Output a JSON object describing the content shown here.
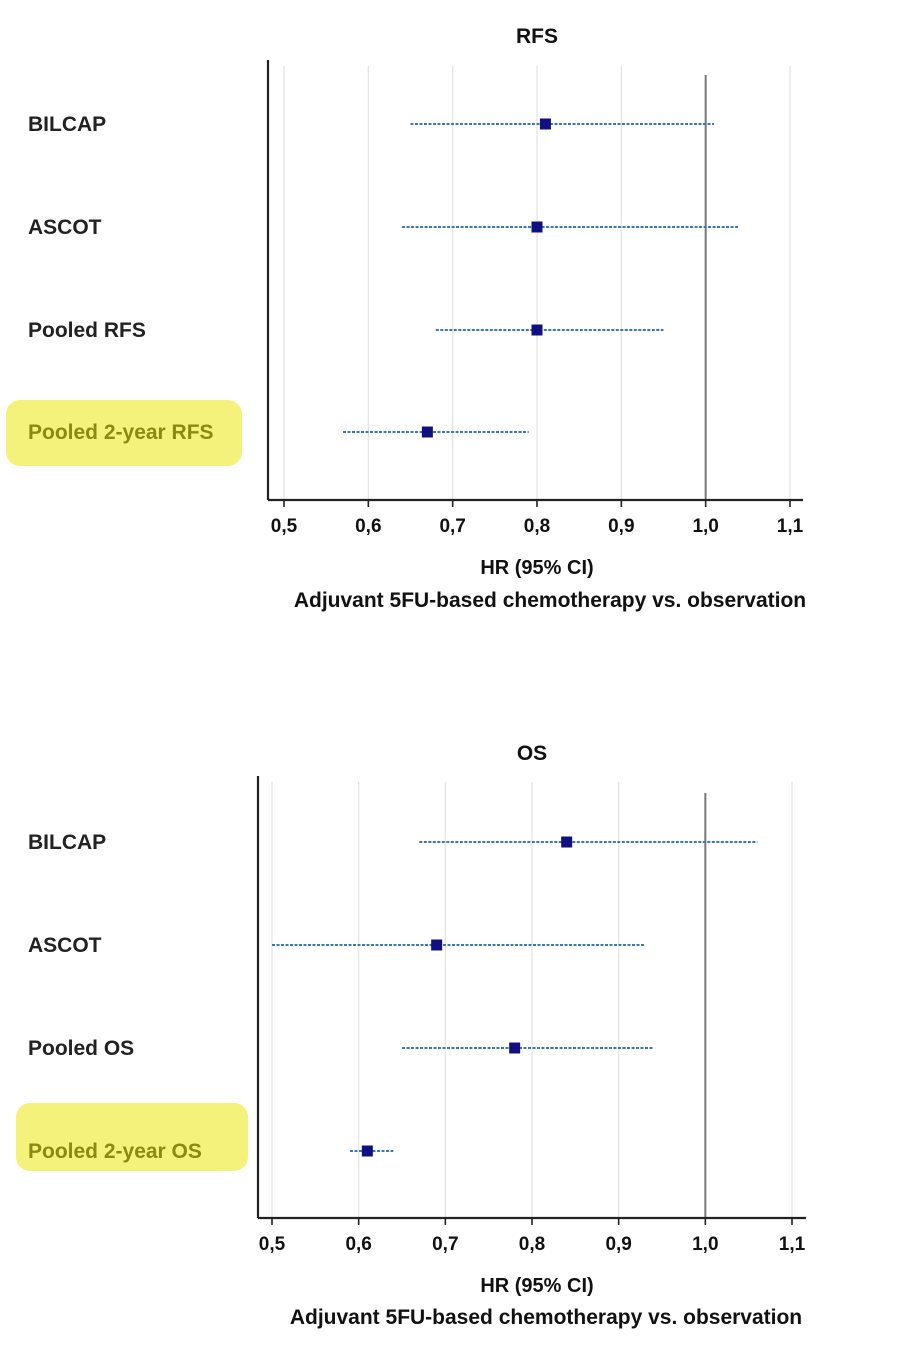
{
  "chart_data": [
    {
      "type": "forest",
      "title": "RFS",
      "xlabel": "HR (95% CI)",
      "subtitle": "Adjuvant 5FU-based chemotherapy vs. observation",
      "xlim": [
        0.5,
        1.1
      ],
      "reference_line": 1.0,
      "ticks": [
        "0,5",
        "0,6",
        "0,7",
        "0,8",
        "0,9",
        "1,0",
        "1,1"
      ],
      "tick_values": [
        0.5,
        0.6,
        0.7,
        0.8,
        0.9,
        1.0,
        1.1
      ],
      "rows": [
        {
          "label": "BILCAP",
          "hr": 0.81,
          "ci_low": 0.65,
          "ci_high": 1.01,
          "highlight": false
        },
        {
          "label": "ASCOT",
          "hr": 0.8,
          "ci_low": 0.64,
          "ci_high": 1.04,
          "highlight": false
        },
        {
          "label": "Pooled RFS",
          "hr": 0.8,
          "ci_low": 0.68,
          "ci_high": 0.95,
          "highlight": false
        },
        {
          "label": "Pooled 2-year RFS",
          "hr": 0.67,
          "ci_low": 0.57,
          "ci_high": 0.79,
          "highlight": true
        }
      ]
    },
    {
      "type": "forest",
      "title": "OS",
      "xlabel": "HR (95% CI)",
      "subtitle": "Adjuvant 5FU-based chemotherapy vs. observation",
      "xlim": [
        0.5,
        1.1
      ],
      "reference_line": 1.0,
      "ticks": [
        "0,5",
        "0,6",
        "0,7",
        "0,8",
        "0,9",
        "1,0",
        "1,1"
      ],
      "tick_values": [
        0.5,
        0.6,
        0.7,
        0.8,
        0.9,
        1.0,
        1.1
      ],
      "rows": [
        {
          "label": "BILCAP",
          "hr": 0.84,
          "ci_low": 0.67,
          "ci_high": 1.06,
          "highlight": false
        },
        {
          "label": "ASCOT",
          "hr": 0.69,
          "ci_low": 0.5,
          "ci_high": 0.93,
          "highlight": false
        },
        {
          "label": "Pooled OS",
          "hr": 0.78,
          "ci_low": 0.65,
          "ci_high": 0.94,
          "highlight": false
        },
        {
          "label": "Pooled 2-year OS",
          "hr": 0.61,
          "ci_low": 0.59,
          "ci_high": 0.64,
          "highlight": true
        }
      ]
    }
  ],
  "colors": {
    "marker": "#101080",
    "ci_line": "#3a78b0",
    "axis": "#222222",
    "reference": "#777777",
    "gridline": "#e2e2e2",
    "highlight_fill": "#f4f27a",
    "highlight_text": "#8a8a10"
  }
}
